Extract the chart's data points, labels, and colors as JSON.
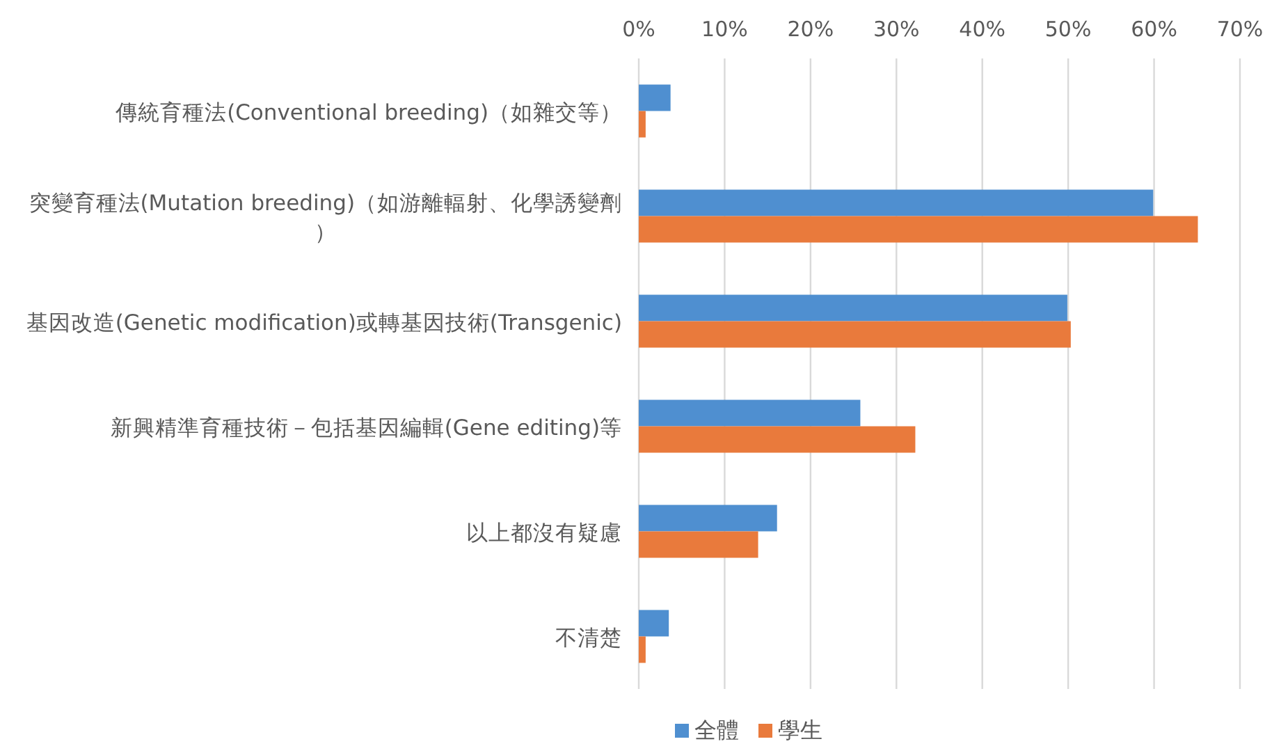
{
  "chart_data": {
    "type": "bar",
    "orientation": "horizontal",
    "categories": [
      "傳統育種法(Conventional breeding)（如雜交等）",
      "突變育種法(Mutation breeding)（如游離輻射、化學誘變劑）",
      "基因改造(Genetic modification)或轉基因技術(Transgenic)",
      "新興精準育種技術－包括基因編輯(Gene editing)等",
      "以上都沒有疑慮",
      "不清楚"
    ],
    "series": [
      {
        "name": "全體",
        "color": "#4f8fd0",
        "values": [
          3.7,
          59.9,
          49.9,
          25.8,
          16.1,
          3.5
        ]
      },
      {
        "name": "學生",
        "color": "#e97a3c",
        "values": [
          0.8,
          65.1,
          50.3,
          32.2,
          13.9,
          0.8
        ]
      }
    ],
    "xlim": [
      0,
      70
    ],
    "xticks": [
      {
        "value": 0,
        "label": "0%"
      },
      {
        "value": 10,
        "label": "10%"
      },
      {
        "value": 20,
        "label": "20%"
      },
      {
        "value": 30,
        "label": "30%"
      },
      {
        "value": 40,
        "label": "40%"
      },
      {
        "value": 50,
        "label": "50%"
      },
      {
        "value": 60,
        "label": "60%"
      },
      {
        "value": 70,
        "label": "70%"
      }
    ],
    "grid": "x",
    "legend": "bottom"
  }
}
